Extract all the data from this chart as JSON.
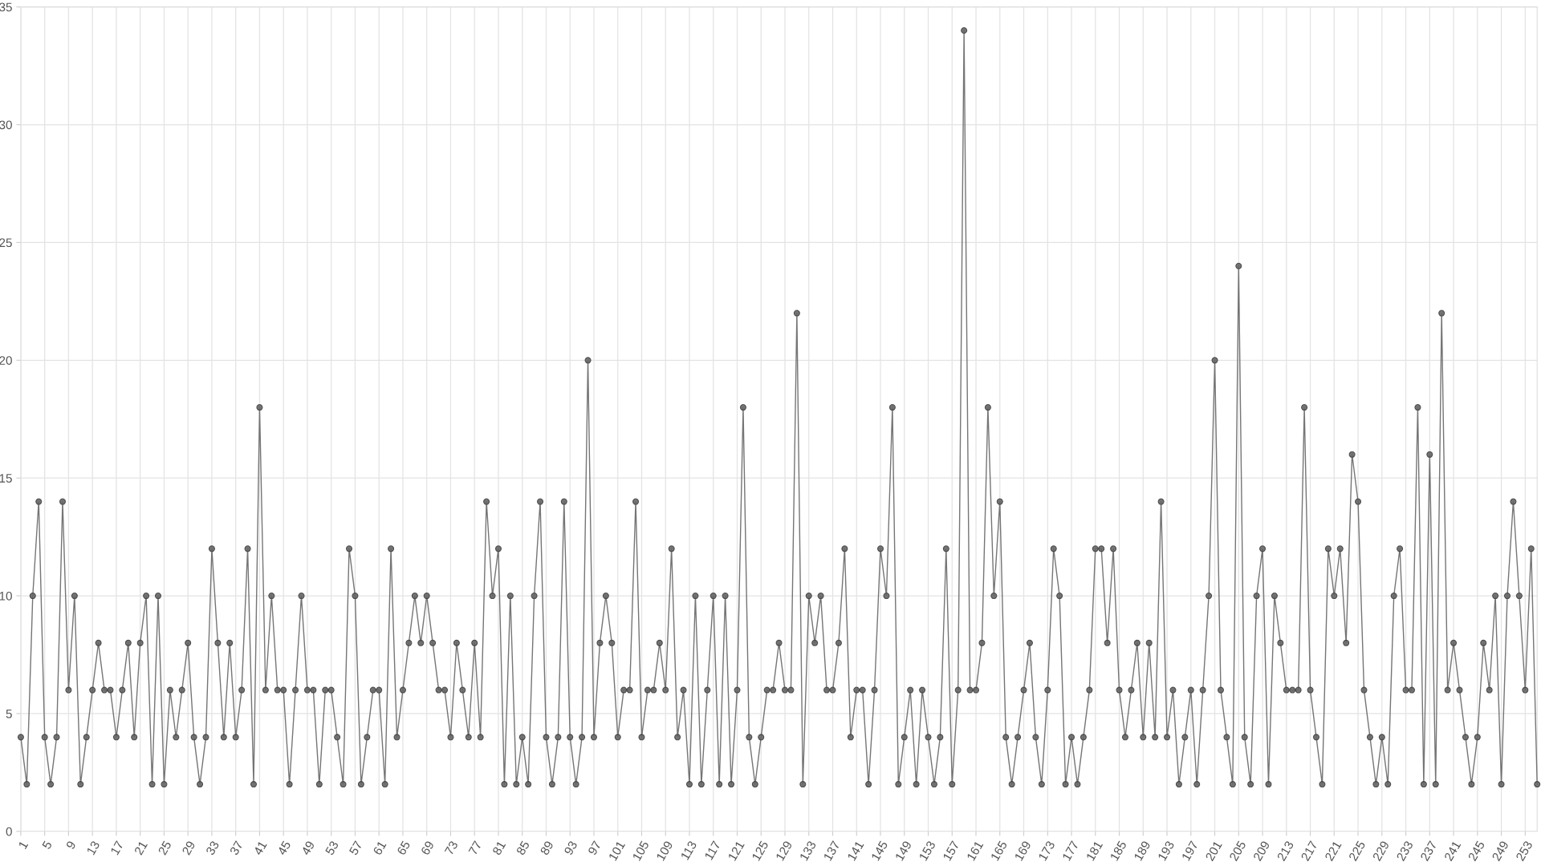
{
  "chart_data": {
    "type": "line",
    "categories": [
      "1",
      null,
      null,
      null,
      "5",
      null,
      null,
      null,
      "9",
      null,
      null,
      null,
      "13",
      null,
      null,
      null,
      "17",
      null,
      null,
      null,
      "21",
      null,
      null,
      null,
      "25",
      null,
      null,
      null,
      "29",
      null,
      null,
      null,
      "33",
      null,
      null,
      null,
      "37",
      null,
      null,
      null,
      "41",
      null,
      null,
      null,
      "45",
      null,
      null,
      null,
      "49",
      null,
      null,
      null,
      "53",
      null,
      null,
      null,
      "57",
      null,
      null,
      null,
      "61",
      null,
      null,
      null,
      "65",
      null,
      null,
      null,
      "69",
      null,
      null,
      null,
      "73",
      null,
      null,
      null,
      "77",
      null,
      null,
      null,
      "81",
      null,
      null,
      null,
      "85",
      null,
      null,
      null,
      "89",
      null,
      null,
      null,
      "93",
      null,
      null,
      null,
      "97",
      null,
      null,
      null,
      "101",
      null,
      null,
      null,
      "105",
      null,
      null,
      null,
      "109",
      null,
      null,
      null,
      "113",
      null,
      null,
      null,
      "117",
      null,
      null,
      null,
      "121",
      null,
      null,
      null,
      "125",
      null,
      null,
      null,
      "129",
      null,
      null,
      null,
      "133",
      null,
      null,
      null,
      "137",
      null,
      null,
      null,
      "141",
      null,
      null,
      null,
      "145",
      null,
      null,
      null,
      "149",
      null,
      null,
      null,
      "153",
      null,
      null,
      null,
      "157",
      null,
      null,
      null,
      "161",
      null,
      null,
      null,
      "165",
      null,
      null,
      null,
      "169",
      null,
      null,
      null,
      "173",
      null,
      null,
      null,
      "177",
      null,
      null,
      null,
      "181",
      null,
      null,
      null,
      "185",
      null,
      null,
      null,
      "189",
      null,
      null,
      null,
      "193",
      null,
      null,
      null,
      "197",
      null,
      null,
      null,
      "201",
      null,
      null,
      null,
      "205",
      null,
      null,
      null,
      "209",
      null,
      null,
      null,
      "213",
      null,
      null,
      null,
      "217",
      null,
      null,
      null,
      "221",
      null,
      null,
      null,
      "225",
      null,
      null,
      null,
      "229",
      null,
      null,
      null,
      "233",
      null,
      null,
      null,
      "237",
      null,
      null,
      null,
      "241",
      null,
      null,
      null,
      "245",
      null,
      null,
      null,
      "249",
      null,
      null,
      null,
      "253",
      null,
      null
    ],
    "series": [
      {
        "color": "#666666",
        "values": [
          4,
          2,
          10,
          14,
          4,
          2,
          4,
          14,
          6,
          10,
          2,
          4,
          6,
          8,
          6,
          6,
          4,
          6,
          8,
          4,
          8,
          10,
          2,
          10,
          2,
          6,
          4,
          6,
          8,
          4,
          2,
          4,
          12,
          8,
          4,
          8,
          4,
          6,
          12,
          2,
          18,
          6,
          10,
          6,
          6,
          2,
          6,
          10,
          6,
          6,
          2,
          6,
          6,
          4,
          2,
          12,
          10,
          2,
          4,
          6,
          6,
          2,
          12,
          4,
          6,
          8,
          10,
          8,
          10,
          8,
          6,
          6,
          4,
          8,
          6,
          4,
          8,
          4,
          14,
          10,
          12,
          2,
          10,
          2,
          4,
          2,
          10,
          14,
          4,
          2,
          4,
          14,
          4,
          2,
          4,
          20,
          4,
          8,
          10,
          8,
          4,
          6,
          6,
          14,
          4,
          6,
          6,
          8,
          6,
          12,
          4,
          6,
          2,
          10,
          2,
          6,
          10,
          2,
          10,
          2,
          6,
          18,
          4,
          2,
          4,
          6,
          6,
          8,
          6,
          6,
          22,
          2,
          10,
          8,
          10,
          6,
          6,
          8,
          12,
          4,
          6,
          6,
          2,
          6,
          12,
          10,
          18,
          2,
          4,
          6,
          2,
          6,
          4,
          2,
          4,
          12,
          2,
          6,
          34,
          6,
          6,
          8,
          18,
          10,
          14,
          4,
          2,
          4,
          6,
          8,
          4,
          2,
          6,
          12,
          10,
          2,
          4,
          2,
          4,
          6,
          12,
          12,
          8,
          12,
          6,
          4,
          6,
          8,
          4,
          8,
          4,
          14,
          4,
          6,
          2,
          4,
          6,
          2,
          6,
          10,
          20,
          6,
          4,
          2,
          24,
          4,
          2,
          10,
          12,
          2,
          10,
          8,
          6,
          6,
          6,
          18,
          6,
          4,
          2,
          12,
          10,
          12,
          8,
          16,
          14,
          6,
          4,
          2,
          4,
          2,
          10,
          12,
          6,
          6,
          18,
          2,
          16,
          2,
          22,
          6,
          8,
          6,
          4,
          2,
          4,
          8,
          6,
          10,
          2,
          10,
          14,
          10,
          6,
          12,
          2
        ]
      }
    ],
    "ylim": [
      0,
      35
    ],
    "yticks": [
      0,
      5,
      10,
      15,
      20,
      25,
      30,
      35
    ],
    "grid": true,
    "marker": "circle",
    "line_style": "solid",
    "legend": false
  }
}
